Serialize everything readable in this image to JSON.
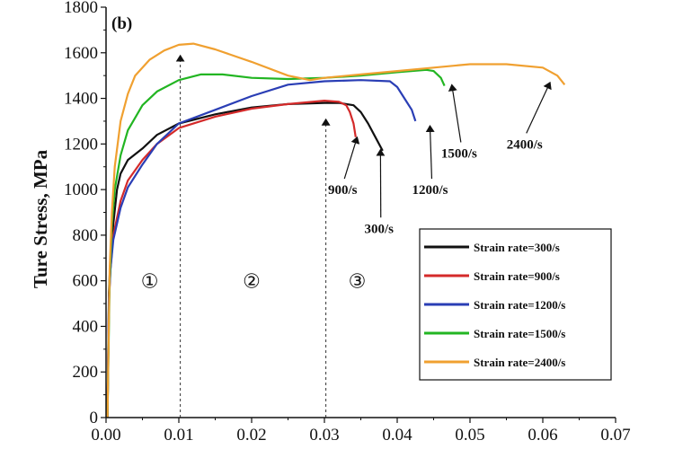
{
  "chart_data": {
    "type": "line",
    "panel_label": "(b)",
    "ylabel": "Ture Stress, MPa",
    "xlabel": "",
    "xlim": [
      0,
      0.07
    ],
    "ylim": [
      0,
      1800
    ],
    "xticks": [
      0,
      0.01,
      0.02,
      0.03,
      0.04,
      0.05,
      0.06,
      0.07
    ],
    "xtick_labels": [
      "0.00",
      "0.01",
      "0.02",
      "0.03",
      "0.04",
      "0.05",
      "0.06",
      "0.07"
    ],
    "yticks": [
      0,
      200,
      400,
      600,
      800,
      1000,
      1200,
      1400,
      1600,
      1800
    ],
    "ytick_labels": [
      "0",
      "200",
      "400",
      "600",
      "800",
      "1000",
      "1200",
      "1400",
      "1600",
      "1800"
    ],
    "legend_position": "bottom-right",
    "series": [
      {
        "name": "Strain rate=300/s",
        "color": "#111111",
        "points": [
          [
            0.0002,
            0
          ],
          [
            0.0004,
            550
          ],
          [
            0.0006,
            700
          ],
          [
            0.001,
            850
          ],
          [
            0.0015,
            1000
          ],
          [
            0.002,
            1070
          ],
          [
            0.003,
            1130
          ],
          [
            0.005,
            1180
          ],
          [
            0.007,
            1240
          ],
          [
            0.01,
            1290
          ],
          [
            0.015,
            1330
          ],
          [
            0.02,
            1360
          ],
          [
            0.025,
            1375
          ],
          [
            0.03,
            1380
          ],
          [
            0.032,
            1380
          ],
          [
            0.034,
            1370
          ],
          [
            0.035,
            1340
          ],
          [
            0.036,
            1290
          ],
          [
            0.037,
            1230
          ],
          [
            0.038,
            1170
          ]
        ]
      },
      {
        "name": "Strain rate=900/s",
        "color": "#d42a2a",
        "points": [
          [
            0.0002,
            0
          ],
          [
            0.0004,
            500
          ],
          [
            0.0006,
            650
          ],
          [
            0.001,
            800
          ],
          [
            0.002,
            950
          ],
          [
            0.003,
            1040
          ],
          [
            0.005,
            1130
          ],
          [
            0.007,
            1200
          ],
          [
            0.01,
            1270
          ],
          [
            0.015,
            1320
          ],
          [
            0.02,
            1355
          ],
          [
            0.025,
            1375
          ],
          [
            0.03,
            1390
          ],
          [
            0.032,
            1385
          ],
          [
            0.033,
            1370
          ],
          [
            0.0335,
            1340
          ],
          [
            0.034,
            1290
          ],
          [
            0.0343,
            1230
          ]
        ]
      },
      {
        "name": "Strain rate=1200/s",
        "color": "#2a3eb5",
        "points": [
          [
            0.0002,
            0
          ],
          [
            0.0004,
            520
          ],
          [
            0.0006,
            650
          ],
          [
            0.001,
            780
          ],
          [
            0.002,
            920
          ],
          [
            0.003,
            1010
          ],
          [
            0.005,
            1110
          ],
          [
            0.007,
            1200
          ],
          [
            0.01,
            1290
          ],
          [
            0.015,
            1350
          ],
          [
            0.02,
            1410
          ],
          [
            0.025,
            1460
          ],
          [
            0.03,
            1475
          ],
          [
            0.035,
            1480
          ],
          [
            0.039,
            1475
          ],
          [
            0.04,
            1450
          ],
          [
            0.041,
            1400
          ],
          [
            0.042,
            1350
          ],
          [
            0.0425,
            1300
          ]
        ]
      },
      {
        "name": "Strain rate=1500/s",
        "color": "#22b522",
        "points": [
          [
            0.0002,
            0
          ],
          [
            0.0005,
            600
          ],
          [
            0.0008,
            850
          ],
          [
            0.0012,
            1000
          ],
          [
            0.002,
            1150
          ],
          [
            0.003,
            1260
          ],
          [
            0.005,
            1370
          ],
          [
            0.007,
            1430
          ],
          [
            0.01,
            1480
          ],
          [
            0.013,
            1505
          ],
          [
            0.016,
            1505
          ],
          [
            0.02,
            1490
          ],
          [
            0.025,
            1485
          ],
          [
            0.03,
            1490
          ],
          [
            0.035,
            1500
          ],
          [
            0.04,
            1515
          ],
          [
            0.044,
            1525
          ],
          [
            0.045,
            1520
          ],
          [
            0.046,
            1490
          ],
          [
            0.0465,
            1455
          ]
        ]
      },
      {
        "name": "Strain rate=2400/s",
        "color": "#f0a030",
        "points": [
          [
            0.0002,
            0
          ],
          [
            0.0005,
            650
          ],
          [
            0.0008,
            900
          ],
          [
            0.0012,
            1100
          ],
          [
            0.002,
            1300
          ],
          [
            0.003,
            1420
          ],
          [
            0.004,
            1500
          ],
          [
            0.006,
            1570
          ],
          [
            0.008,
            1610
          ],
          [
            0.01,
            1635
          ],
          [
            0.012,
            1640
          ],
          [
            0.015,
            1615
          ],
          [
            0.02,
            1560
          ],
          [
            0.025,
            1500
          ],
          [
            0.028,
            1480
          ],
          [
            0.03,
            1490
          ],
          [
            0.035,
            1505
          ],
          [
            0.04,
            1520
          ],
          [
            0.045,
            1535
          ],
          [
            0.05,
            1550
          ],
          [
            0.055,
            1550
          ],
          [
            0.06,
            1535
          ],
          [
            0.062,
            1500
          ],
          [
            0.063,
            1460
          ]
        ]
      }
    ],
    "annotations": [
      {
        "text": "900/s",
        "x": 0.0325,
        "y": 1000,
        "arrow_to": [
          0.0345,
          1230
        ]
      },
      {
        "text": "300/s",
        "x": 0.0375,
        "y": 830,
        "arrow_to": [
          0.0377,
          1175
        ]
      },
      {
        "text": "1200/s",
        "x": 0.0445,
        "y": 1000,
        "arrow_to": [
          0.0445,
          1280
        ]
      },
      {
        "text": "1500/s",
        "x": 0.0485,
        "y": 1160,
        "arrow_to": [
          0.0475,
          1460
        ]
      },
      {
        "text": "2400/s",
        "x": 0.0575,
        "y": 1200,
        "arrow_to": [
          0.061,
          1470
        ]
      }
    ],
    "regions": [
      "①",
      "②",
      "③"
    ],
    "region_label_positions": [
      [
        0.006,
        600
      ],
      [
        0.02,
        600
      ],
      [
        0.0345,
        600
      ]
    ],
    "dividers": [
      {
        "x": 0.0102,
        "y_top": 1620
      },
      {
        "x": 0.0302,
        "y_top": 1340
      }
    ]
  }
}
